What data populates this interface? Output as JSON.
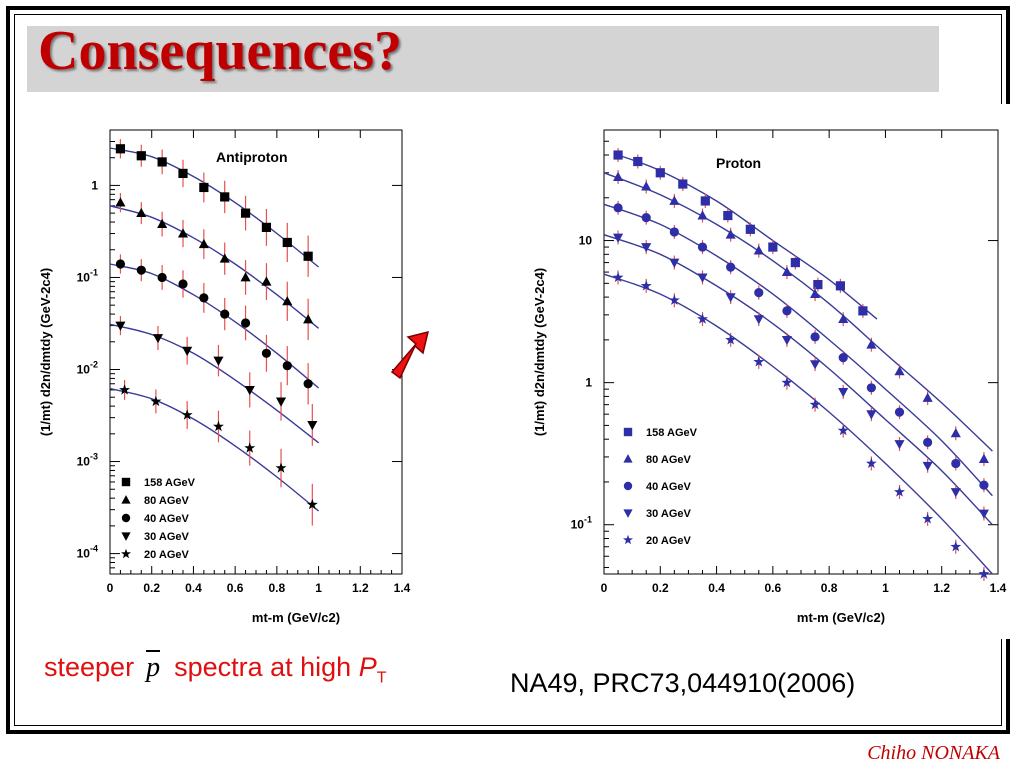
{
  "slide": {
    "title": "Consequences?",
    "caption_left": {
      "prefix": "steeper",
      "symbol": "p",
      "middle": "spectra at high",
      "var": "P",
      "sub": "T"
    },
    "caption_right": "NA49, PRC73,044910(2006)",
    "footer": "Chiho NONAKA",
    "arrow_color": "#ee1111"
  },
  "chart_data": [
    {
      "type": "scatter",
      "title": "Antiproton",
      "xlabel": "mt-m (GeV/c2)",
      "ylabel": "(1/mt) d2n/dmtdy (GeV-2c4)",
      "xlim": [
        0,
        1.4
      ],
      "ylim": [
        6e-05,
        4
      ],
      "yscale": "log",
      "xticks": [
        "0",
        "0.2",
        "0.4",
        "0.6",
        "0.8",
        "1",
        "1.2",
        "1.4"
      ],
      "yticks": [
        {
          "v": 1,
          "label": "1"
        },
        {
          "v": 0.1,
          "label": "10-1"
        },
        {
          "v": 0.01,
          "label": "10-2"
        },
        {
          "v": 0.001,
          "label": "10-3"
        },
        {
          "v": 0.0001,
          "label": "10-4"
        }
      ],
      "legend_position": "bottom-left",
      "marker_color": "#000000",
      "fit_color": "#3a3a9a",
      "series": [
        {
          "name": "158 AGeV",
          "marker": "square",
          "x": [
            0.05,
            0.15,
            0.25,
            0.35,
            0.45,
            0.55,
            0.65,
            0.75,
            0.85,
            0.95
          ],
          "y": [
            2.5,
            2.1,
            1.8,
            1.35,
            0.95,
            0.75,
            0.5,
            0.35,
            0.24,
            0.17
          ],
          "fit": [
            [
              0,
              2.55
            ],
            [
              0.2,
              2.05
            ],
            [
              0.4,
              1.25
            ],
            [
              0.6,
              0.65
            ],
            [
              0.8,
              0.3
            ],
            [
              1.0,
              0.13
            ]
          ]
        },
        {
          "name": "80 AGeV",
          "marker": "triangle",
          "x": [
            0.05,
            0.15,
            0.25,
            0.35,
            0.45,
            0.55,
            0.65,
            0.75,
            0.85,
            0.95
          ],
          "y": [
            0.65,
            0.5,
            0.38,
            0.3,
            0.23,
            0.16,
            0.1,
            0.09,
            0.055,
            0.035
          ],
          "fit": [
            [
              0,
              0.6
            ],
            [
              0.2,
              0.45
            ],
            [
              0.4,
              0.27
            ],
            [
              0.6,
              0.14
            ],
            [
              0.8,
              0.065
            ],
            [
              1.0,
              0.028
            ]
          ]
        },
        {
          "name": "40 AGeV",
          "marker": "circle",
          "x": [
            0.05,
            0.15,
            0.25,
            0.35,
            0.45,
            0.55,
            0.65,
            0.75,
            0.85,
            0.95
          ],
          "y": [
            0.14,
            0.12,
            0.1,
            0.085,
            0.06,
            0.04,
            0.032,
            0.015,
            0.011,
            0.007
          ],
          "fit": [
            [
              0,
              0.14
            ],
            [
              0.2,
              0.11
            ],
            [
              0.4,
              0.065
            ],
            [
              0.6,
              0.033
            ],
            [
              0.8,
              0.015
            ],
            [
              1.0,
              0.0063
            ]
          ]
        },
        {
          "name": "30 AGeV",
          "marker": "triangle-down",
          "x": [
            0.05,
            0.23,
            0.37,
            0.52,
            0.67,
            0.82,
            0.97
          ],
          "y": [
            0.03,
            0.022,
            0.016,
            0.0125,
            0.006,
            0.0045,
            0.0025
          ],
          "fit": [
            [
              0,
              0.031
            ],
            [
              0.2,
              0.024
            ],
            [
              0.4,
              0.015
            ],
            [
              0.6,
              0.0077
            ],
            [
              0.8,
              0.0036
            ],
            [
              1.0,
              0.0016
            ]
          ]
        },
        {
          "name": "20 AGeV",
          "marker": "star",
          "x": [
            0.07,
            0.22,
            0.37,
            0.52,
            0.67,
            0.82,
            0.97
          ],
          "y": [
            0.006,
            0.0045,
            0.0032,
            0.0024,
            0.0014,
            0.00085,
            0.00034
          ],
          "fit": [
            [
              0,
              0.0062
            ],
            [
              0.2,
              0.0048
            ],
            [
              0.4,
              0.0029
            ],
            [
              0.6,
              0.00148
            ],
            [
              0.8,
              0.00068
            ],
            [
              1.0,
              0.00029
            ]
          ]
        }
      ]
    },
    {
      "type": "scatter",
      "title": "Proton",
      "xlabel": "mt-m (GeV/c2)",
      "ylabel": "(1/mt) d2n/dmtdy (GeV-2c4)",
      "xlim": [
        0,
        1.4
      ],
      "ylim": [
        0.045,
        60
      ],
      "yscale": "log",
      "xticks": [
        "0",
        "0.2",
        "0.4",
        "0.6",
        "0.8",
        "1",
        "1.2",
        "1.4"
      ],
      "yticks": [
        {
          "v": 10,
          "label": "10"
        },
        {
          "v": 1,
          "label": "1"
        },
        {
          "v": 0.1,
          "label": "10-1"
        }
      ],
      "legend_position": "bottom-left",
      "marker_color": "#2e2ea8",
      "fit_color": "#3a3a9a",
      "series": [
        {
          "name": "158 AGeV",
          "marker": "square",
          "x": [
            0.05,
            0.12,
            0.2,
            0.28,
            0.36,
            0.44,
            0.52,
            0.6,
            0.68,
            0.76,
            0.84,
            0.92
          ],
          "y": [
            40,
            36,
            30,
            25,
            19,
            15,
            12,
            9,
            7,
            4.9,
            4.8,
            3.2
          ],
          "fit": [
            [
              0.05,
              40
            ],
            [
              0.2,
              31
            ],
            [
              0.4,
              19
            ],
            [
              0.6,
              10
            ],
            [
              0.8,
              5.3
            ],
            [
              0.97,
              2.8
            ]
          ]
        },
        {
          "name": "80 AGeV",
          "marker": "triangle",
          "x": [
            0.05,
            0.15,
            0.25,
            0.35,
            0.45,
            0.55,
            0.65,
            0.75,
            0.85,
            0.95,
            1.05,
            1.15,
            1.25,
            1.35
          ],
          "y": [
            28,
            24,
            19,
            15,
            11,
            8.5,
            6,
            4.2,
            2.8,
            1.85,
            1.2,
            0.78,
            0.44,
            0.29
          ],
          "fit": [
            [
              0.0,
              30
            ],
            [
              0.2,
              21
            ],
            [
              0.4,
              13
            ],
            [
              0.6,
              7.2
            ],
            [
              0.8,
              3.6
            ],
            [
              1.0,
              1.6
            ],
            [
              1.2,
              0.72
            ],
            [
              1.38,
              0.33
            ]
          ]
        },
        {
          "name": "40 AGeV",
          "marker": "circle",
          "x": [
            0.05,
            0.15,
            0.25,
            0.35,
            0.45,
            0.55,
            0.65,
            0.75,
            0.85,
            0.95,
            1.05,
            1.15,
            1.25,
            1.35
          ],
          "y": [
            17,
            14.5,
            11.5,
            9,
            6.5,
            4.3,
            3.2,
            2.1,
            1.5,
            0.92,
            0.62,
            0.38,
            0.27,
            0.19
          ],
          "fit": [
            [
              0.0,
              18
            ],
            [
              0.2,
              13
            ],
            [
              0.4,
              7.8
            ],
            [
              0.6,
              4.2
            ],
            [
              0.8,
              2.0
            ],
            [
              1.0,
              0.9
            ],
            [
              1.2,
              0.39
            ],
            [
              1.38,
              0.16
            ]
          ]
        },
        {
          "name": "30 AGeV",
          "marker": "triangle-down",
          "x": [
            0.05,
            0.15,
            0.25,
            0.35,
            0.45,
            0.55,
            0.65,
            0.75,
            0.85,
            0.95,
            1.05,
            1.15,
            1.25,
            1.35
          ],
          "y": [
            10.5,
            9,
            7,
            5.5,
            4,
            2.8,
            2,
            1.35,
            0.86,
            0.6,
            0.37,
            0.26,
            0.17,
            0.12
          ],
          "fit": [
            [
              0.0,
              11
            ],
            [
              0.2,
              8
            ],
            [
              0.4,
              4.8
            ],
            [
              0.6,
              2.6
            ],
            [
              0.8,
              1.25
            ],
            [
              1.0,
              0.55
            ],
            [
              1.2,
              0.24
            ],
            [
              1.38,
              0.1
            ]
          ]
        },
        {
          "name": "20 AGeV",
          "marker": "star",
          "x": [
            0.05,
            0.15,
            0.25,
            0.35,
            0.45,
            0.55,
            0.65,
            0.75,
            0.85,
            0.95,
            1.05,
            1.15,
            1.25,
            1.35
          ],
          "y": [
            5.5,
            4.8,
            3.8,
            2.8,
            2,
            1.4,
            1,
            0.7,
            0.46,
            0.27,
            0.17,
            0.11,
            0.07,
            0.045
          ],
          "fit": [
            [
              0.0,
              5.8
            ],
            [
              0.2,
              4.2
            ],
            [
              0.4,
              2.5
            ],
            [
              0.6,
              1.3
            ],
            [
              0.8,
              0.62
            ],
            [
              1.0,
              0.27
            ],
            [
              1.2,
              0.11
            ],
            [
              1.38,
              0.045
            ]
          ]
        }
      ]
    }
  ]
}
